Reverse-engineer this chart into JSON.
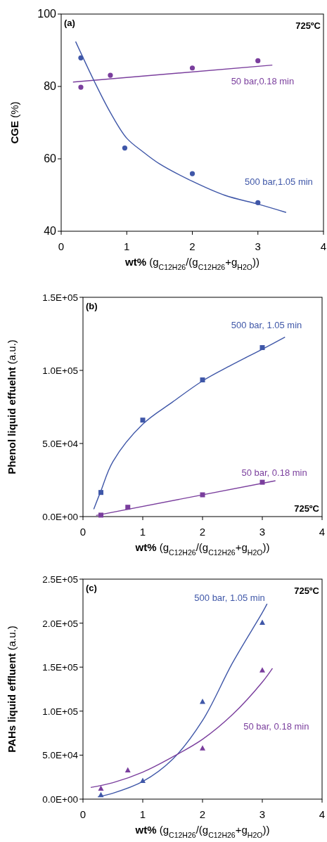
{
  "chart_data": [
    {
      "type": "scatter",
      "ylabel": "CGE (%)",
      "xlabel": "wt% (g$_{C12H26}$/(g$_{C12H26}$+g$_{H2O}$))",
      "annotations": [
        "(a)",
        "725ºC"
      ],
      "xlim": [
        0,
        4
      ],
      "xticks": [
        0,
        1,
        2,
        3,
        4
      ],
      "ylim": [
        40,
        100
      ],
      "yticks": [
        40,
        60,
        80,
        100
      ],
      "grid": false,
      "series": [
        {
          "type": "line",
          "name": "50 bar,0.18 min",
          "color": "#7a3e9d",
          "marker": "none",
          "x": [
            0.18,
            3.22
          ],
          "values": [
            81.2,
            85.9
          ]
        },
        {
          "type": "line",
          "name": "500 bar,1.05 min",
          "color": "#3f57a8",
          "marker": "none",
          "x": [
            0.22,
            0.5,
            0.75,
            1,
            1.25,
            1.5,
            2,
            2.5,
            3,
            3.43
          ],
          "values": [
            92.4,
            81.6,
            72.8,
            65.7,
            61.9,
            58.6,
            53.8,
            49.9,
            47.5,
            45.2
          ]
        },
        {
          "color": "#7a3e9d",
          "marker": "circle",
          "x": [
            0.3,
            0.75,
            2,
            3
          ],
          "values": [
            79.8,
            83.1,
            85.1,
            87.1
          ]
        },
        {
          "color": "#3f57a8",
          "marker": "circle",
          "x": [
            0.3,
            0.97,
            2,
            3
          ],
          "values": [
            87.9,
            63.0,
            55.9,
            47.9
          ]
        }
      ]
    },
    {
      "type": "scatter",
      "ylabel": "Phenol liquid effuelnt (a.u.)",
      "xlabel": "wt% (g$_{C12H26}$/(g$_{C12H26}$+g$_{H2O}$))",
      "annotations": [
        "(b)",
        "725ºC"
      ],
      "xlim": [
        0,
        4
      ],
      "xticks": [
        0,
        1,
        2,
        3,
        4
      ],
      "ylim": [
        0,
        150000
      ],
      "yticks": [
        {
          "value": 0,
          "label": "0.0E+00"
        },
        {
          "value": 50000,
          "label": "5.0E+04"
        },
        {
          "value": 100000,
          "label": "1.0E+05"
        },
        {
          "value": 150000,
          "label": "1.5E+05"
        }
      ],
      "grid": false,
      "series": [
        {
          "type": "line",
          "name": "500 bar, 1.05 min",
          "color": "#3f57a8",
          "marker": "none",
          "x": [
            0.18,
            0.3,
            0.5,
            1,
            1.5,
            2,
            2.5,
            3,
            3.38
          ],
          "values": [
            5100,
            17600,
            37600,
            63200,
            78400,
            92800,
            104000,
            114500,
            122800
          ]
        },
        {
          "type": "line",
          "name": "50 bar, 0.18 min",
          "color": "#7a3e9d",
          "marker": "none",
          "x": [
            0.22,
            3.22
          ],
          "values": [
            800,
            24500
          ]
        },
        {
          "color": "#3f57a8",
          "marker": "square",
          "x": [
            0.3,
            1,
            2,
            3
          ],
          "values": [
            16500,
            66000,
            93500,
            115600
          ]
        },
        {
          "color": "#7a3e9d",
          "marker": "square",
          "x": [
            0.3,
            0.75,
            2,
            3
          ],
          "values": [
            1000,
            6400,
            14900,
            23500
          ]
        }
      ]
    },
    {
      "type": "scatter",
      "ylabel": "PAHs liquid effluent (a.u.)",
      "xlabel": "wt% (g$_{C12H26}$/(g$_{C12H26}$+g$_{H2O}$))",
      "annotations": [
        "(c)",
        "725ºC"
      ],
      "xlim": [
        0,
        4
      ],
      "xticks": [
        0,
        1,
        2,
        3,
        4
      ],
      "ylim": [
        0,
        250000
      ],
      "yticks": [
        {
          "value": 0,
          "label": "0.0E+00"
        },
        {
          "value": 50000,
          "label": "5.0E+04"
        },
        {
          "value": 100000,
          "label": "1.0E+05"
        },
        {
          "value": 150000,
          "label": "1.5E+05"
        },
        {
          "value": 200000,
          "label": "2.0E+05"
        },
        {
          "value": 250000,
          "label": "2.5E+05"
        }
      ],
      "grid": false,
      "series": [
        {
          "type": "line",
          "name": "500 bar, 1.05 min",
          "color": "#3f57a8",
          "marker": "none",
          "x": [
            0.25,
            0.5,
            1,
            1.5,
            2,
            2.5,
            3,
            3.08
          ],
          "values": [
            2700,
            6700,
            20000,
            45300,
            89300,
            154600,
            211900,
            222000
          ]
        },
        {
          "type": "line",
          "name": "50 bar, 0.18 min",
          "color": "#7a3e9d",
          "marker": "none",
          "x": [
            0.13,
            0.5,
            1,
            1.5,
            2,
            2.5,
            3,
            3.17
          ],
          "values": [
            13300,
            18700,
            30700,
            48000,
            68000,
            96000,
            133000,
            148700
          ]
        },
        {
          "color": "#3f57a8",
          "marker": "triangle",
          "x": [
            0.3,
            1,
            2,
            3
          ],
          "values": [
            4500,
            20800,
            110600,
            200400
          ]
        },
        {
          "color": "#7a3e9d",
          "marker": "triangle",
          "x": [
            0.3,
            0.75,
            2,
            3
          ],
          "values": [
            12000,
            32800,
            57800,
            146300
          ]
        }
      ]
    }
  ]
}
